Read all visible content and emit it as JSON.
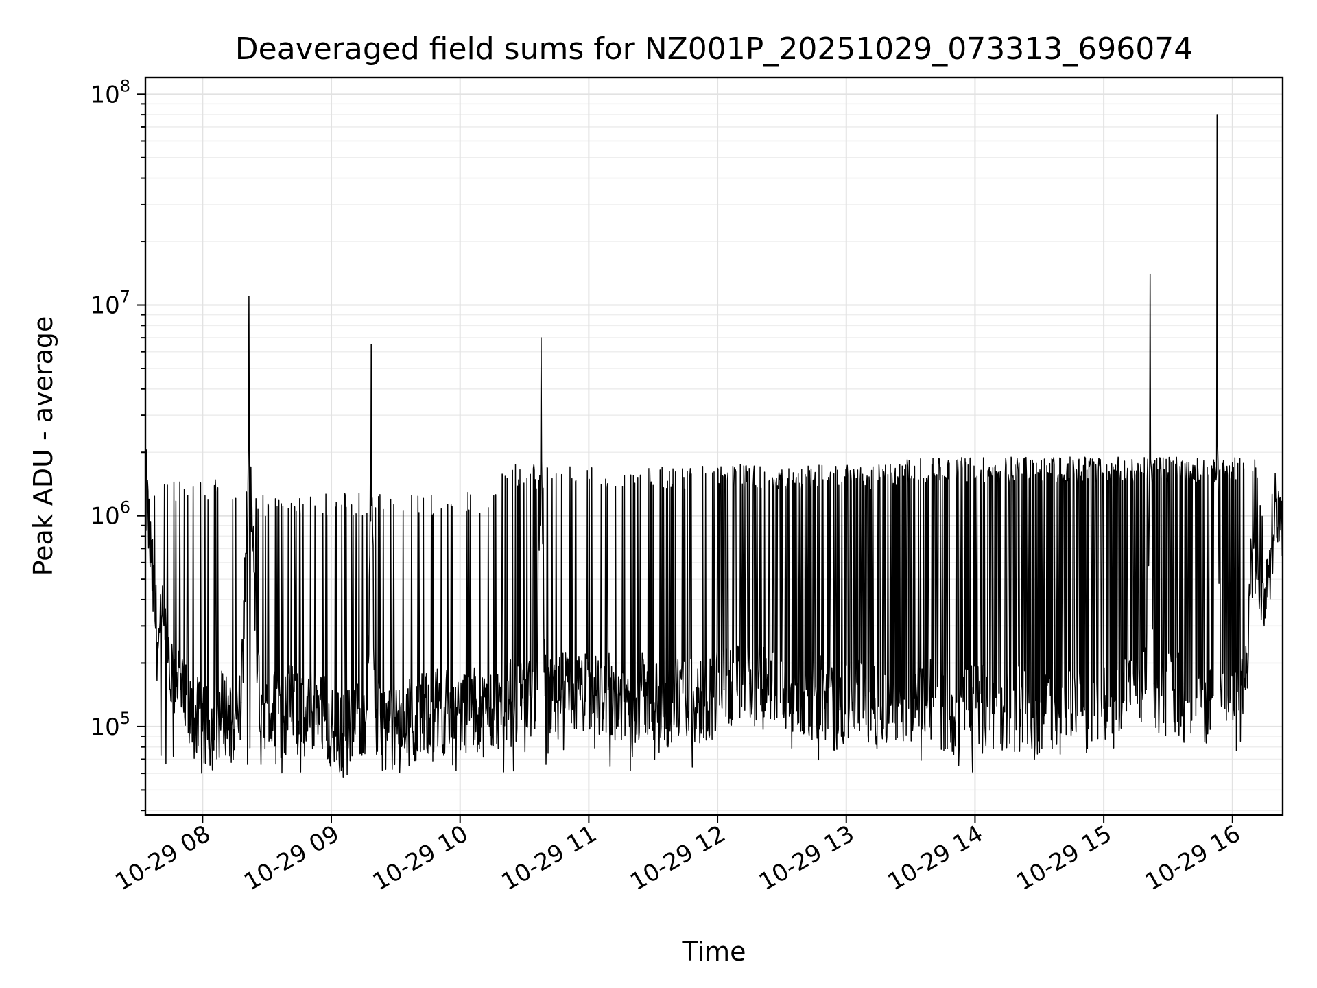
{
  "chart_data": {
    "type": "line",
    "title": "Deaveraged field sums for NZ001P_20251029_073313_696074",
    "xlabel": "Time",
    "ylabel": "Peak ADU - average",
    "yscale": "log",
    "ylim": [
      38000,
      120000000
    ],
    "xlim_hours": [
      7.556,
      16.39
    ],
    "grid": true,
    "x_ticks": [
      {
        "hour": 8,
        "label": "10-29 08"
      },
      {
        "hour": 9,
        "label": "10-29 09"
      },
      {
        "hour": 10,
        "label": "10-29 10"
      },
      {
        "hour": 11,
        "label": "10-29 11"
      },
      {
        "hour": 12,
        "label": "10-29 12"
      },
      {
        "hour": 13,
        "label": "10-29 13"
      },
      {
        "hour": 14,
        "label": "10-29 14"
      },
      {
        "hour": 15,
        "label": "10-29 15"
      },
      {
        "hour": 16,
        "label": "10-29 16"
      }
    ],
    "y_ticks": [
      {
        "value": 100000,
        "base": "10",
        "exp": "5"
      },
      {
        "value": 1000000,
        "base": "10",
        "exp": "6"
      },
      {
        "value": 10000000,
        "base": "10",
        "exp": "7"
      },
      {
        "value": 100000000,
        "base": "10",
        "exp": "8"
      }
    ],
    "series": [
      {
        "name": "field sums",
        "color": "#000000",
        "x_hours": [
          7.556,
          7.6,
          7.65,
          7.7,
          7.75,
          7.8,
          7.85,
          7.9,
          7.95,
          8.0,
          8.08,
          8.16,
          8.25,
          8.3,
          8.36,
          8.45,
          8.55,
          8.62,
          8.7,
          8.8,
          8.9,
          9.0,
          9.1,
          9.2,
          9.28,
          9.31,
          9.34,
          9.4,
          9.5,
          9.6,
          9.7,
          9.8,
          9.9,
          10.0,
          10.1,
          10.2,
          10.3,
          10.4,
          10.5,
          10.6,
          10.63,
          10.66,
          10.75,
          10.85,
          10.95,
          11.05,
          11.15,
          11.25,
          11.35,
          11.45,
          11.55,
          11.65,
          11.75,
          11.85,
          11.95,
          12.05,
          12.15,
          12.25,
          12.35,
          12.45,
          12.55,
          12.65,
          12.75,
          12.85,
          12.95,
          13.05,
          13.15,
          13.25,
          13.35,
          13.45,
          13.55,
          13.65,
          13.75,
          13.85,
          13.95,
          14.05,
          14.15,
          14.25,
          14.35,
          14.45,
          14.55,
          14.65,
          14.75,
          14.85,
          14.95,
          15.05,
          15.15,
          15.25,
          15.33,
          15.36,
          15.39,
          15.45,
          15.55,
          15.65,
          15.75,
          15.85,
          15.88,
          15.91,
          15.98,
          16.05,
          16.1,
          16.15,
          16.2,
          16.25,
          16.3,
          16.34,
          16.39
        ],
        "y": [
          1500000,
          600000,
          250000,
          300000,
          150000,
          180000,
          130000,
          110000,
          110000,
          95000,
          100000,
          120000,
          110000,
          130000,
          11000000,
          95000,
          120000,
          110000,
          130000,
          100000,
          140000,
          95000,
          90000,
          115000,
          120000,
          6500000,
          110000,
          100000,
          100000,
          105000,
          110000,
          120000,
          115000,
          120000,
          120000,
          115000,
          125000,
          130000,
          130000,
          150000,
          7000000,
          140000,
          130000,
          150000,
          140000,
          145000,
          150000,
          130000,
          135000,
          140000,
          120000,
          130000,
          140000,
          130000,
          140000,
          150000,
          150000,
          160000,
          150000,
          140000,
          130000,
          135000,
          140000,
          130000,
          120000,
          130000,
          140000,
          125000,
          130000,
          135000,
          120000,
          130000,
          125000,
          115000,
          120000,
          130000,
          115000,
          125000,
          120000,
          110000,
          115000,
          120000,
          115000,
          120000,
          130000,
          125000,
          130000,
          140000,
          150000,
          14000000,
          160000,
          140000,
          150000,
          130000,
          125000,
          140000,
          80000000,
          150000,
          130000,
          120000,
          150000,
          600000,
          500000,
          450000,
          700000,
          1200000,
          800000
        ]
      }
    ],
    "annotations": []
  }
}
